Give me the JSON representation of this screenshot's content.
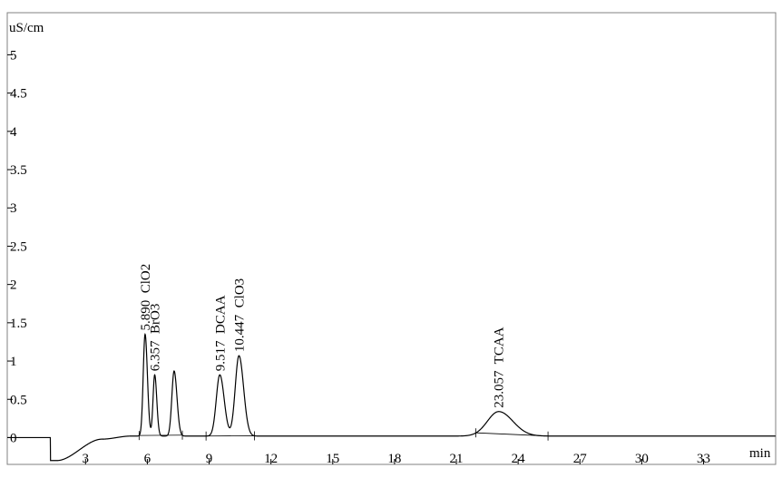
{
  "chart_data": {
    "type": "line",
    "title": "",
    "ylabel": "uS/cm",
    "xlabel": "min",
    "xlim": [
      -0.8,
      36.5
    ],
    "ylim": [
      -0.35,
      5.55
    ],
    "x_ticks": [
      {
        "value": 3,
        "label": "3"
      },
      {
        "value": 6,
        "label": "6"
      },
      {
        "value": 9,
        "label": "9"
      },
      {
        "value": 12,
        "label": "12"
      },
      {
        "value": 15,
        "label": "15"
      },
      {
        "value": 18,
        "label": "18"
      },
      {
        "value": 21,
        "label": "21"
      },
      {
        "value": 24,
        "label": "24"
      },
      {
        "value": 27,
        "label": "27"
      },
      {
        "value": 30,
        "label": "30"
      },
      {
        "value": 33,
        "label": "33"
      }
    ],
    "y_ticks": [
      {
        "value": 0,
        "label": "0"
      },
      {
        "value": 0.5,
        "label": "0.5"
      },
      {
        "value": 1,
        "label": "1"
      },
      {
        "value": 1.5,
        "label": "1.5"
      },
      {
        "value": 2,
        "label": "2"
      },
      {
        "value": 2.5,
        "label": "2.5"
      },
      {
        "value": 3,
        "label": "3"
      },
      {
        "value": 3.5,
        "label": "3.5"
      },
      {
        "value": 4,
        "label": "4"
      },
      {
        "value": 4.5,
        "label": "4.5"
      },
      {
        "value": 5,
        "label": "5"
      }
    ],
    "series": [
      {
        "color": "#000000",
        "baseline": 0.02,
        "dip": {
          "start": 1.3,
          "min_x": 1.6,
          "min_y": -0.3,
          "recover_x": 3.8,
          "recover_y": -0.02
        },
        "peaks": [
          {
            "rt": 5.89,
            "height": 1.33,
            "width": 0.09
          },
          {
            "rt": 6.357,
            "height": 0.8,
            "width": 0.08
          },
          {
            "rt": 7.3,
            "height": 0.85,
            "width": 0.11
          },
          {
            "rt": 9.517,
            "height": 0.8,
            "width": 0.17
          },
          {
            "rt": 10.447,
            "height": 1.05,
            "width": 0.18
          },
          {
            "rt": 23.057,
            "height": 0.32,
            "width": 0.55
          }
        ]
      }
    ],
    "peak_labels": [
      {
        "rt": 5.89,
        "text": "5.890  ClO2"
      },
      {
        "rt": 6.357,
        "text": "6.357  BrO3"
      },
      {
        "rt": 9.517,
        "text": "9.517  DCAA"
      },
      {
        "rt": 10.447,
        "text": "10.447  ClO3"
      },
      {
        "rt": 23.057,
        "text": "23.057  TCAA"
      }
    ]
  }
}
